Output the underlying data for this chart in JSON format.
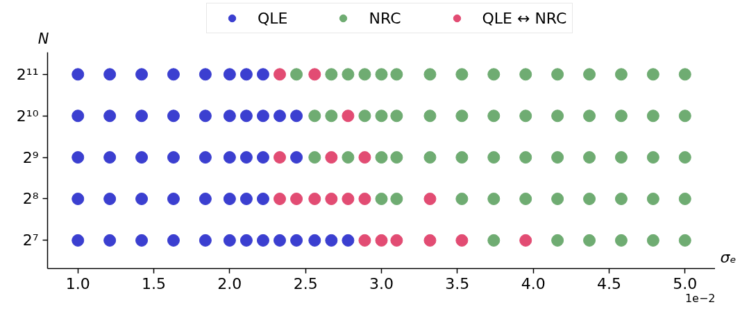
{
  "chart_data": {
    "type": "scatter",
    "xlabel": "σₑ",
    "ylabel": "N",
    "annotations": [
      "1e−2"
    ],
    "log": "y",
    "grid": false,
    "legend": "top",
    "marker": "circle",
    "xlim": [
      0.8,
      5.2
    ],
    "xticks": [
      {
        "value": 1,
        "label": "1.0"
      },
      {
        "value": 1.5,
        "label": "1.5"
      },
      {
        "value": 2,
        "label": "2.0"
      },
      {
        "value": 2.5,
        "label": "2.5"
      },
      {
        "value": 3,
        "label": "3.0"
      },
      {
        "value": 3.5,
        "label": "3.5"
      },
      {
        "value": 4,
        "label": "4.0"
      },
      {
        "value": 4.5,
        "label": "4.5"
      },
      {
        "value": 5,
        "label": "5.0"
      }
    ],
    "ylim": [
      80,
      2960
    ],
    "yticks": [
      {
        "value": 128,
        "label": "2⁷"
      },
      {
        "value": 256,
        "label": "2⁸"
      },
      {
        "value": 512,
        "label": "2⁹"
      },
      {
        "value": 1024,
        "label": "2¹⁰"
      },
      {
        "value": 2048,
        "label": "2¹¹"
      }
    ],
    "series": [
      {
        "name": "QLE",
        "color": "#3b3fd0",
        "x": [
          1.0,
          1.21,
          1.42,
          1.63,
          1.84,
          2.0,
          2.11,
          2.22,
          1.0,
          1.21,
          1.42,
          1.63,
          1.84,
          2.0,
          2.11,
          2.22,
          2.33,
          2.44,
          1.0,
          1.21,
          1.42,
          1.63,
          1.84,
          2.0,
          2.11,
          2.22,
          2.44,
          1.0,
          1.21,
          1.42,
          1.63,
          1.84,
          2.0,
          2.11,
          2.22,
          1.0,
          1.21,
          1.42,
          1.63,
          1.84,
          2.0,
          2.11,
          2.22,
          2.33,
          2.44,
          2.56,
          2.67,
          2.78
        ],
        "values": [
          2048,
          2048,
          2048,
          2048,
          2048,
          2048,
          2048,
          2048,
          1024,
          1024,
          1024,
          1024,
          1024,
          1024,
          1024,
          1024,
          1024,
          1024,
          512,
          512,
          512,
          512,
          512,
          512,
          512,
          512,
          512,
          256,
          256,
          256,
          256,
          256,
          256,
          256,
          256,
          128,
          128,
          128,
          128,
          128,
          128,
          128,
          128,
          128,
          128,
          128,
          128,
          128
        ]
      },
      {
        "name": "NRC",
        "color": "#6fac72",
        "x": [
          2.44,
          2.67,
          2.78,
          2.89,
          3.0,
          3.1,
          3.32,
          3.53,
          3.74,
          3.95,
          4.16,
          4.37,
          4.58,
          4.79,
          5.0,
          2.56,
          2.67,
          2.89,
          3.0,
          3.1,
          3.32,
          3.53,
          3.74,
          3.95,
          4.16,
          4.37,
          4.58,
          4.79,
          5.0,
          2.56,
          2.78,
          3.0,
          3.1,
          3.32,
          3.53,
          3.74,
          3.95,
          4.16,
          4.37,
          4.58,
          4.79,
          5.0,
          3.0,
          3.1,
          3.53,
          3.74,
          3.95,
          4.16,
          4.37,
          4.58,
          4.79,
          5.0,
          3.74,
          4.16,
          4.37,
          4.58,
          4.79,
          5.0
        ],
        "values": [
          2048,
          2048,
          2048,
          2048,
          2048,
          2048,
          2048,
          2048,
          2048,
          2048,
          2048,
          2048,
          2048,
          2048,
          2048,
          1024,
          1024,
          1024,
          1024,
          1024,
          1024,
          1024,
          1024,
          1024,
          1024,
          1024,
          1024,
          1024,
          1024,
          512,
          512,
          512,
          512,
          512,
          512,
          512,
          512,
          512,
          512,
          512,
          512,
          512,
          256,
          256,
          256,
          256,
          256,
          256,
          256,
          256,
          256,
          256,
          128,
          128,
          128,
          128,
          128,
          128
        ]
      },
      {
        "name": "QLE ↔ NRC",
        "color": "#e24c73",
        "x": [
          2.33,
          2.56,
          2.78,
          2.33,
          2.67,
          2.89,
          2.33,
          2.44,
          2.56,
          2.67,
          2.78,
          2.89,
          3.32,
          2.89,
          3.0,
          3.1,
          3.32,
          3.53,
          3.95
        ],
        "values": [
          2048,
          2048,
          1024,
          512,
          512,
          512,
          256,
          256,
          256,
          256,
          256,
          256,
          256,
          128,
          128,
          128,
          128,
          128,
          128
        ]
      }
    ]
  }
}
